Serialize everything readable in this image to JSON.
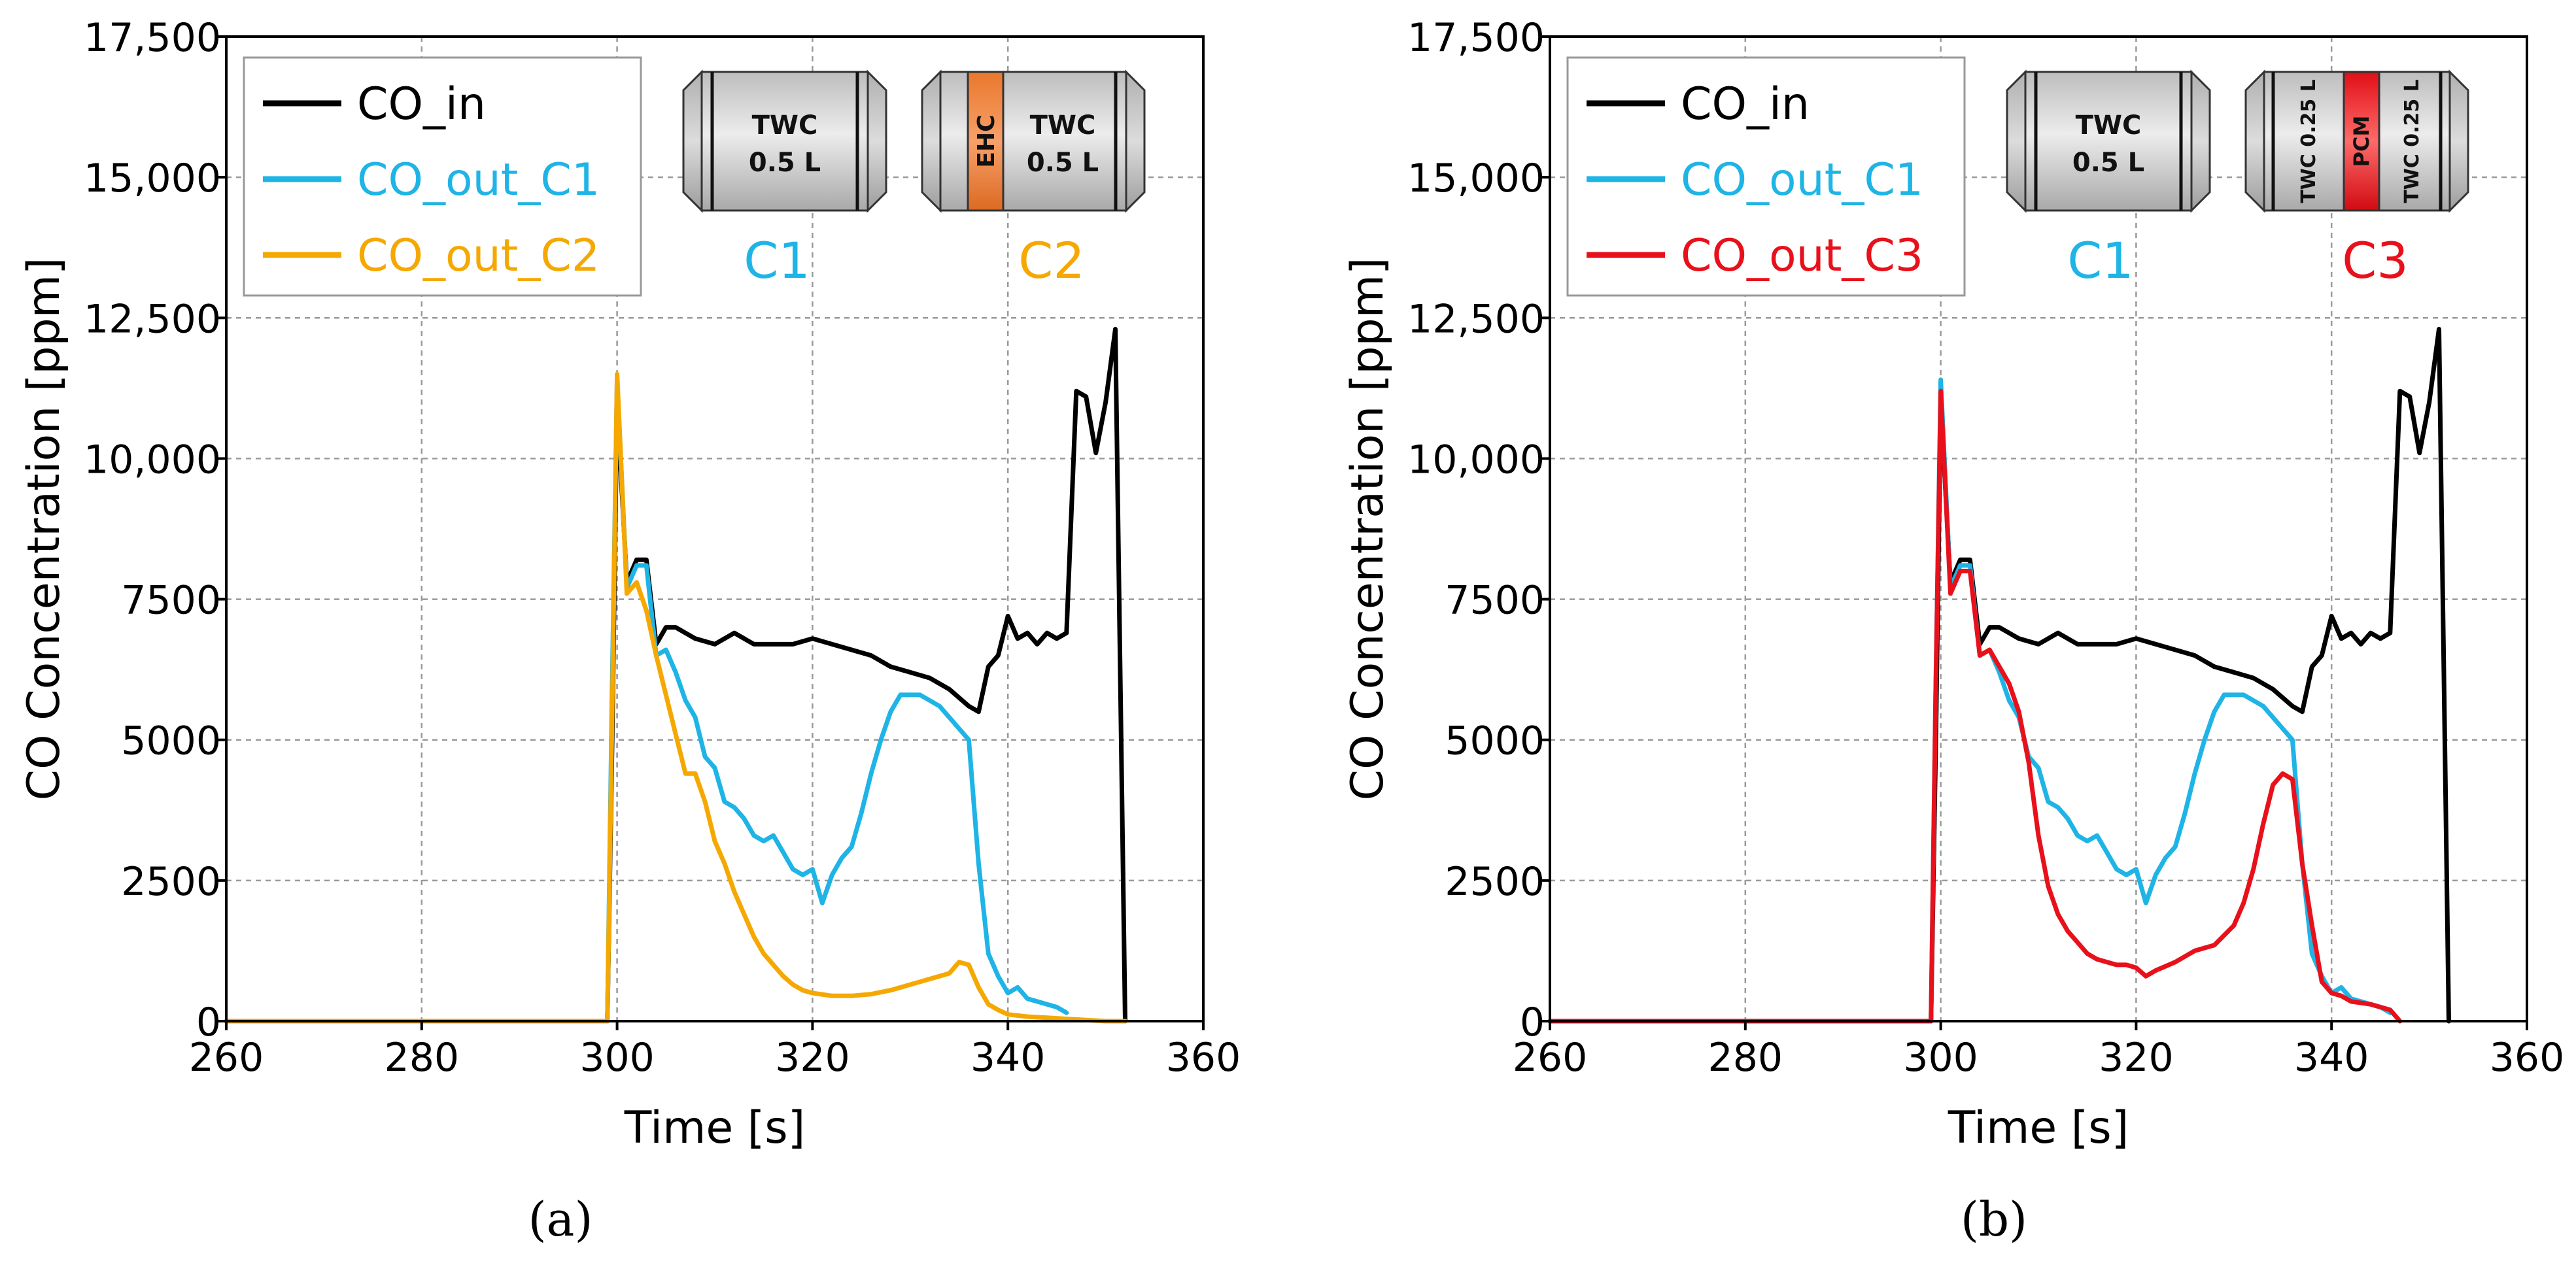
{
  "chart_data": [
    {
      "panel_label": "(a)",
      "type": "line",
      "xlabel": "Time [s]",
      "ylabel": "CO Concentration [ppm]",
      "xlim": [
        260,
        360
      ],
      "ylim": [
        0,
        17500
      ],
      "xticks": [
        260,
        280,
        300,
        320,
        340,
        360
      ],
      "xtick_labels": [
        "260",
        "280",
        "300",
        "320",
        "340",
        "360"
      ],
      "yticks": [
        0,
        2500,
        5000,
        7500,
        10000,
        12500,
        15000,
        17500
      ],
      "ytick_labels": [
        "0",
        "2500",
        "5000",
        "7500",
        "10,000",
        "12,500",
        "15,000",
        "17,500"
      ],
      "grid": true,
      "legend_position": "top-left",
      "series": [
        {
          "name": "CO_in",
          "color": "#000000",
          "x": [
            260,
            299,
            299.5,
            300,
            301,
            302,
            303,
            304,
            305,
            306,
            308,
            310,
            312,
            314,
            316,
            318,
            320,
            322,
            324,
            326,
            328,
            330,
            332,
            334,
            336,
            337,
            338,
            339,
            340,
            341,
            342,
            343,
            344,
            345,
            346,
            347,
            348,
            349,
            350,
            351,
            352
          ],
          "values": [
            0,
            0,
            5000,
            11000,
            7800,
            8200,
            8200,
            6700,
            7000,
            7000,
            6800,
            6700,
            6900,
            6700,
            6700,
            6700,
            6800,
            6700,
            6600,
            6500,
            6300,
            6200,
            6100,
            5900,
            5600,
            5500,
            6300,
            6500,
            7200,
            6800,
            6900,
            6700,
            6900,
            6800,
            6900,
            11200,
            11100,
            10100,
            11000,
            12300,
            0
          ]
        },
        {
          "name": "CO_out_C1",
          "color": "#1fb4e6",
          "x": [
            260,
            299,
            299.5,
            300,
            301,
            302,
            303,
            304,
            305,
            306,
            307,
            308,
            309,
            310,
            311,
            312,
            313,
            314,
            315,
            316,
            317,
            318,
            319,
            320,
            321,
            322,
            323,
            324,
            325,
            326,
            327,
            328,
            329,
            330,
            331,
            332,
            333,
            334,
            335,
            336,
            337,
            338,
            339,
            340,
            341,
            342,
            343,
            344,
            345,
            346
          ],
          "values": [
            0,
            0,
            6000,
            11400,
            7700,
            8100,
            8100,
            6500,
            6600,
            6200,
            5700,
            5400,
            4700,
            4500,
            3900,
            3800,
            3600,
            3300,
            3200,
            3300,
            3000,
            2700,
            2600,
            2700,
            2100,
            2600,
            2900,
            3100,
            3700,
            4400,
            5000,
            5500,
            5800,
            5800,
            5800,
            5700,
            5600,
            5400,
            5200,
            5000,
            2800,
            1200,
            800,
            500,
            600,
            400,
            350,
            300,
            250,
            150
          ]
        },
        {
          "name": "CO_out_C2",
          "color": "#f5a800",
          "x": [
            260,
            299,
            299.5,
            300,
            301,
            302,
            303,
            304,
            305,
            306,
            307,
            308,
            309,
            310,
            311,
            312,
            313,
            314,
            315,
            316,
            317,
            318,
            319,
            320,
            322,
            324,
            326,
            328,
            330,
            332,
            334,
            335,
            336,
            337,
            338,
            339,
            340,
            342,
            344,
            346,
            348,
            350,
            352
          ],
          "values": [
            0,
            0,
            5500,
            11500,
            7600,
            7800,
            7300,
            6500,
            5800,
            5100,
            4400,
            4400,
            3900,
            3200,
            2800,
            2300,
            1900,
            1500,
            1200,
            1000,
            800,
            650,
            550,
            500,
            450,
            450,
            480,
            550,
            650,
            750,
            850,
            1050,
            1000,
            600,
            300,
            200,
            120,
            80,
            60,
            40,
            20,
            0,
            0
          ]
        }
      ],
      "annotations": {
        "c1_label": "C1",
        "c1_color": "#1fb4e6",
        "c2_label": "C2",
        "c2_color": "#f5a800",
        "c1_brick_text_1": "TWC",
        "c1_brick_text_2": "0.5 L",
        "c2_insert_text": "EHC",
        "c2_insert_color": "#f08a3c",
        "c2_brick_text_1": "TWC",
        "c2_brick_text_2": "0.5 L"
      }
    },
    {
      "panel_label": "(b)",
      "type": "line",
      "xlabel": "Time [s]",
      "ylabel": "CO Concentration [ppm]",
      "xlim": [
        260,
        360
      ],
      "ylim": [
        0,
        17500
      ],
      "xticks": [
        260,
        280,
        300,
        320,
        340,
        360
      ],
      "xtick_labels": [
        "260",
        "280",
        "300",
        "320",
        "340",
        "360"
      ],
      "yticks": [
        0,
        2500,
        5000,
        7500,
        10000,
        12500,
        15000,
        17500
      ],
      "ytick_labels": [
        "0",
        "2500",
        "5000",
        "7500",
        "10,000",
        "12,500",
        "15,000",
        "17,500"
      ],
      "grid": true,
      "legend_position": "top-left",
      "series": [
        {
          "name": "CO_in",
          "color": "#000000",
          "x": [
            260,
            299,
            299.5,
            300,
            301,
            302,
            303,
            304,
            305,
            306,
            308,
            310,
            312,
            314,
            316,
            318,
            320,
            322,
            324,
            326,
            328,
            330,
            332,
            334,
            336,
            337,
            338,
            339,
            340,
            341,
            342,
            343,
            344,
            345,
            346,
            347,
            348,
            349,
            350,
            351,
            352
          ],
          "values": [
            0,
            0,
            5000,
            11000,
            7800,
            8200,
            8200,
            6700,
            7000,
            7000,
            6800,
            6700,
            6900,
            6700,
            6700,
            6700,
            6800,
            6700,
            6600,
            6500,
            6300,
            6200,
            6100,
            5900,
            5600,
            5500,
            6300,
            6500,
            7200,
            6800,
            6900,
            6700,
            6900,
            6800,
            6900,
            11200,
            11100,
            10100,
            11000,
            12300,
            0
          ]
        },
        {
          "name": "CO_out_C1",
          "color": "#1fb4e6",
          "x": [
            260,
            299,
            299.5,
            300,
            301,
            302,
            303,
            304,
            305,
            306,
            307,
            308,
            309,
            310,
            311,
            312,
            313,
            314,
            315,
            316,
            317,
            318,
            319,
            320,
            321,
            322,
            323,
            324,
            325,
            326,
            327,
            328,
            329,
            330,
            331,
            332,
            333,
            334,
            335,
            336,
            337,
            338,
            339,
            340,
            341,
            342,
            343,
            344,
            345,
            346
          ],
          "values": [
            0,
            0,
            6000,
            11400,
            7700,
            8100,
            8100,
            6500,
            6600,
            6200,
            5700,
            5400,
            4700,
            4500,
            3900,
            3800,
            3600,
            3300,
            3200,
            3300,
            3000,
            2700,
            2600,
            2700,
            2100,
            2600,
            2900,
            3100,
            3700,
            4400,
            5000,
            5500,
            5800,
            5800,
            5800,
            5700,
            5600,
            5400,
            5200,
            5000,
            2800,
            1200,
            800,
            500,
            600,
            400,
            350,
            300,
            250,
            150
          ]
        },
        {
          "name": "CO_out_C3",
          "color": "#e8111b",
          "x": [
            260,
            299,
            299.5,
            300,
            301,
            302,
            303,
            304,
            305,
            306,
            307,
            308,
            309,
            310,
            311,
            312,
            313,
            314,
            315,
            316,
            317,
            318,
            319,
            320,
            321,
            322,
            324,
            326,
            328,
            330,
            331,
            332,
            333,
            334,
            335,
            336,
            337,
            338,
            339,
            340,
            341,
            342,
            344,
            346,
            347
          ],
          "values": [
            0,
            0,
            6000,
            11200,
            7600,
            8000,
            8000,
            6500,
            6600,
            6300,
            6000,
            5500,
            4600,
            3300,
            2400,
            1900,
            1600,
            1400,
            1200,
            1100,
            1050,
            1000,
            1000,
            950,
            800,
            900,
            1050,
            1250,
            1350,
            1700,
            2100,
            2700,
            3500,
            4200,
            4400,
            4300,
            2800,
            1700,
            700,
            500,
            450,
            350,
            300,
            200,
            0
          ]
        }
      ],
      "annotations": {
        "c1_label": "C1",
        "c1_color": "#1fb4e6",
        "c3_label": "C3",
        "c3_color": "#e8111b",
        "c1_brick_text_1": "TWC",
        "c1_brick_text_2": "0.5 L",
        "c3_left_text": "TWC 0.25 L",
        "c3_insert_text": "PCM",
        "c3_insert_color": "#f41c1c",
        "c3_right_text": "TWC 0.25 L"
      }
    }
  ]
}
